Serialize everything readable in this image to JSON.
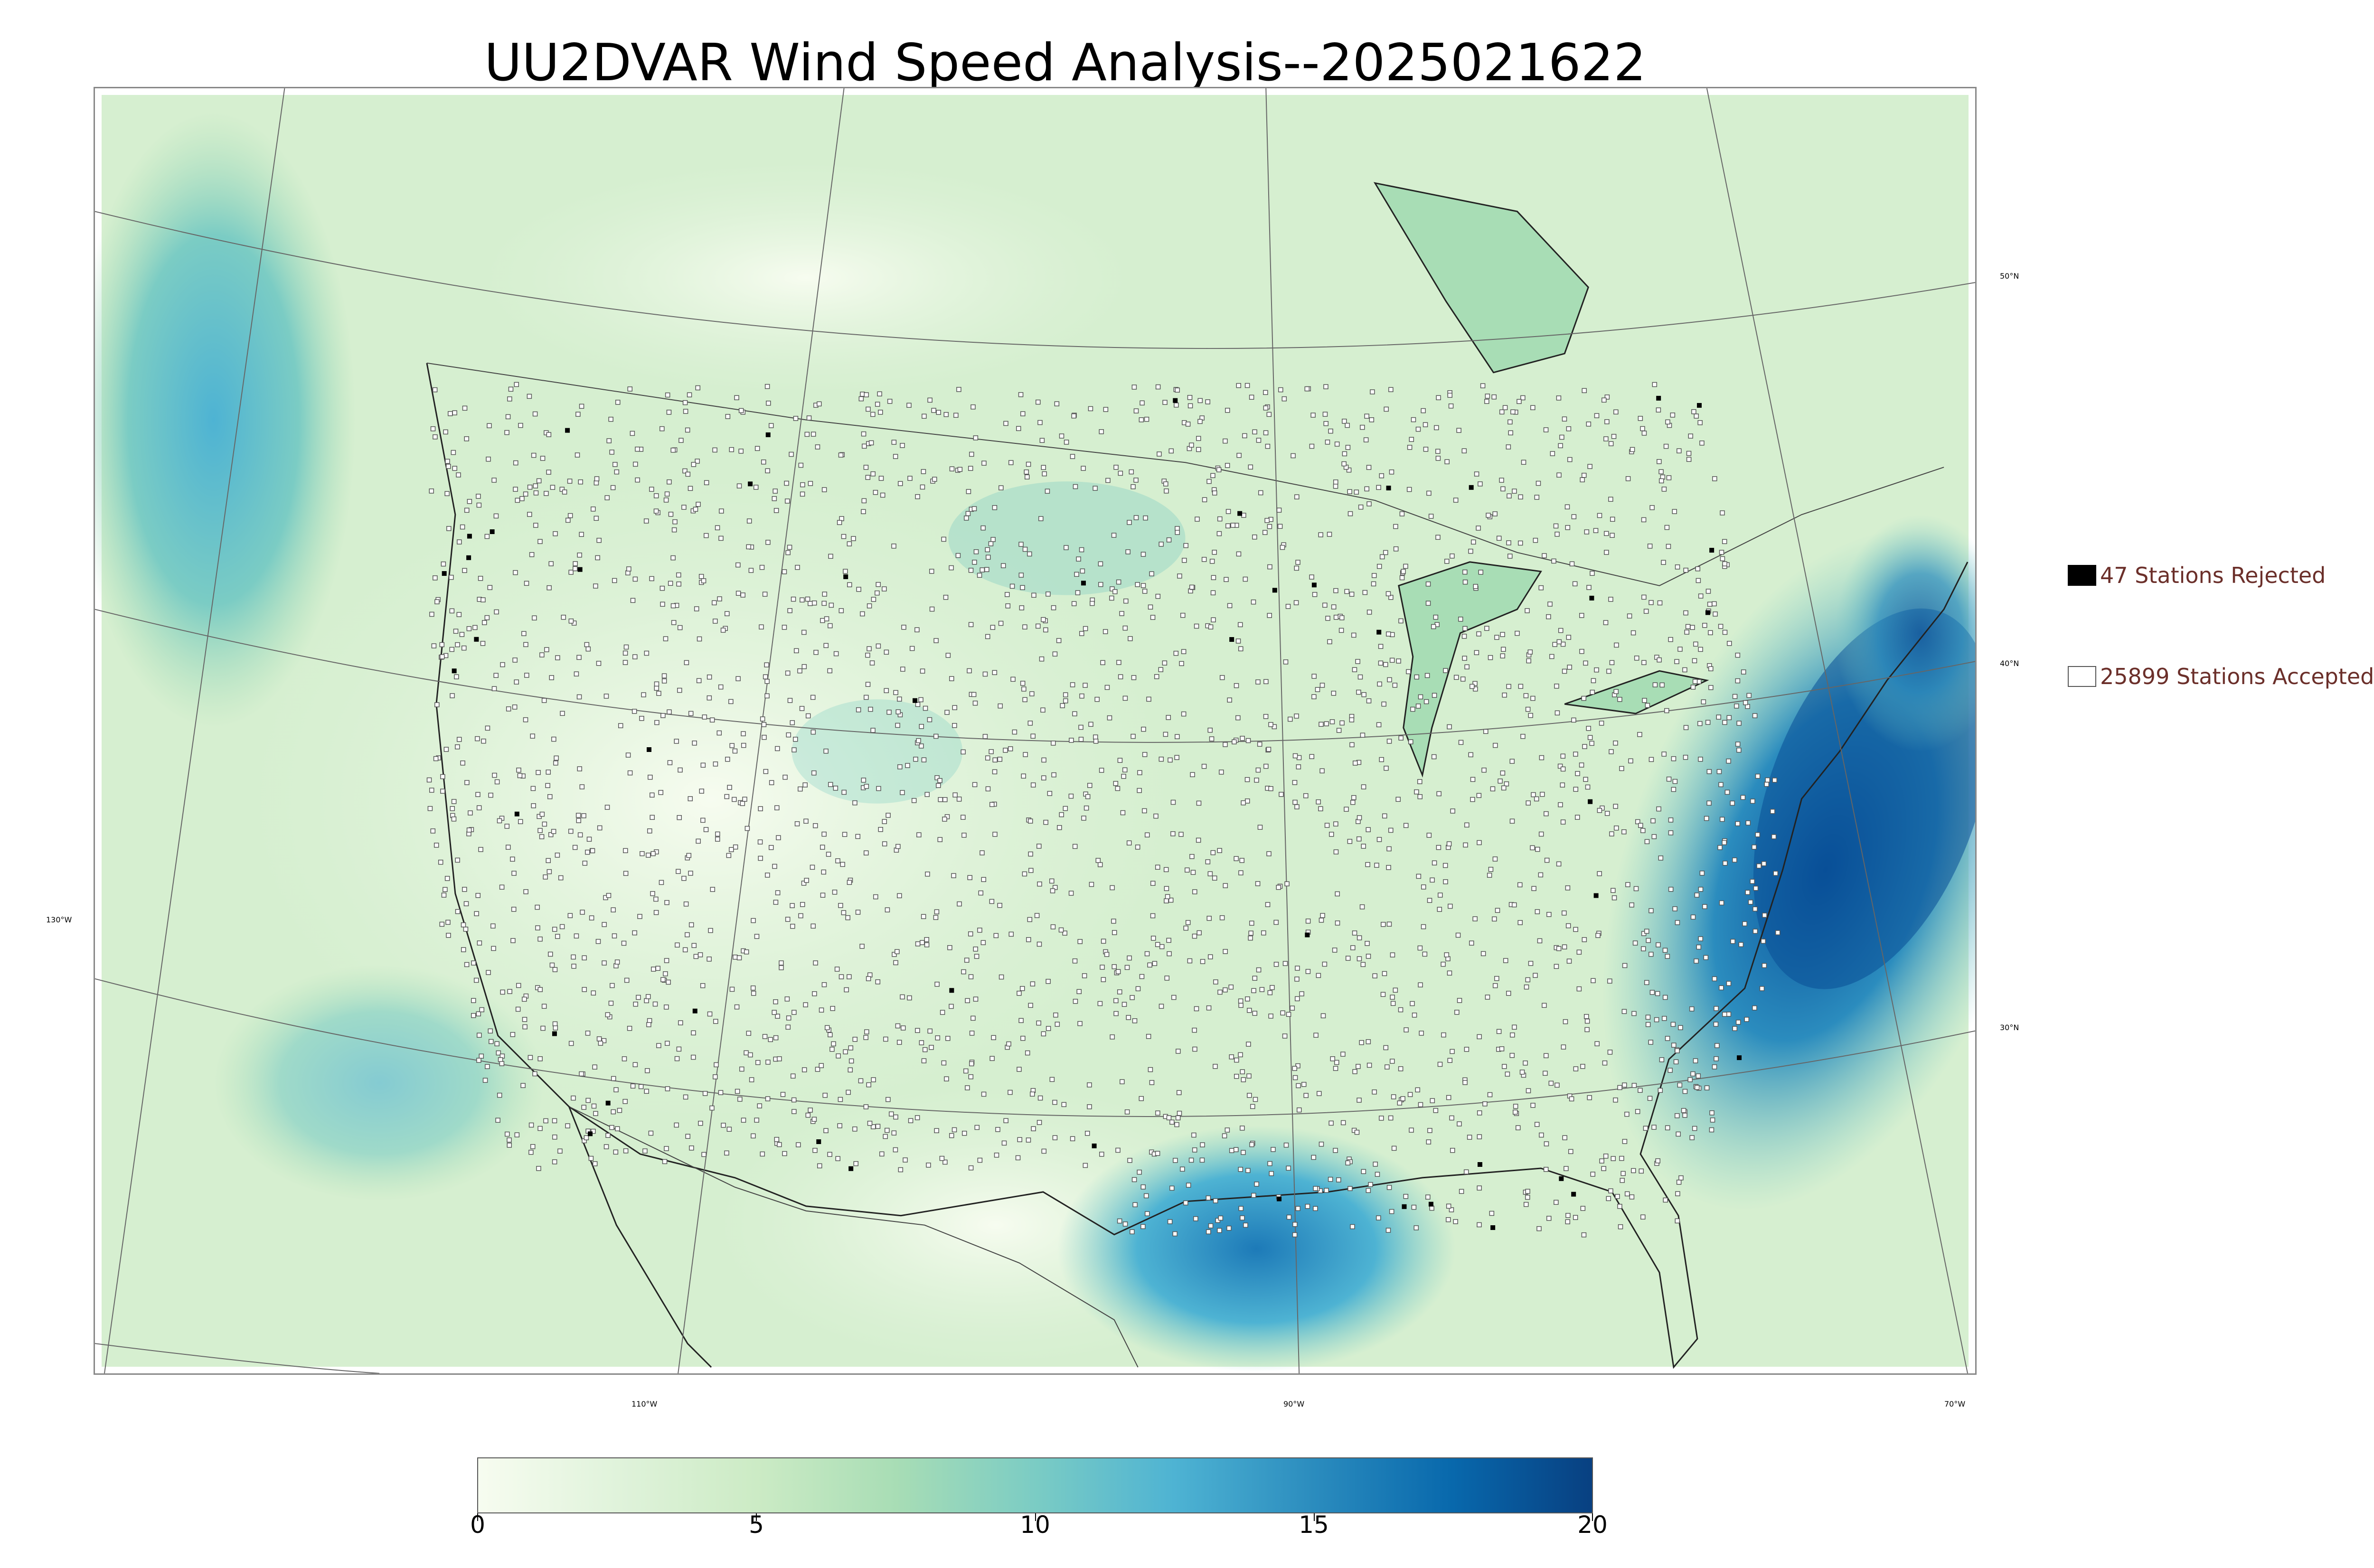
{
  "title": "UU2DVAR Wind Speed Analysis--2025021622",
  "map": {
    "lon_labels": [
      "130°W",
      "110°W",
      "90°W",
      "70°W"
    ],
    "lat_labels": [
      "50°N",
      "40°N",
      "30°N"
    ]
  },
  "legend": {
    "rejected": {
      "label": "47 Stations Rejected",
      "color": "#000000"
    },
    "accepted": {
      "label": "25899 Stations Accepted",
      "color": "#ffffff"
    }
  },
  "colorbar": {
    "min": 0,
    "max": 20,
    "ticks": [
      "0",
      "5",
      "10",
      "15",
      "20"
    ],
    "colors": [
      "#f7fcf0",
      "#e0f3db",
      "#ccebc5",
      "#a8ddb5",
      "#7bccc4",
      "#4eb3d3",
      "#2b8cbe",
      "#0868ac",
      "#084081"
    ]
  }
}
